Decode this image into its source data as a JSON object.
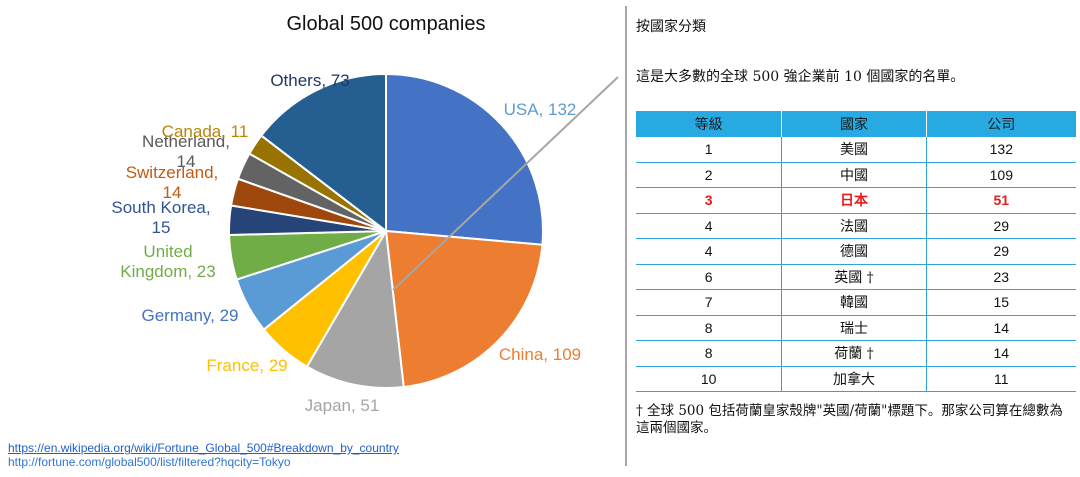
{
  "chart_data": {
    "type": "pie",
    "title": "Global 500 companies",
    "slices": [
      {
        "label": "USA, 132",
        "value": 132,
        "color": "#4472c4",
        "label_color": "#5b9bd5"
      },
      {
        "label": "China, 109",
        "value": 109,
        "color": "#ed7d31",
        "label_color": "#ed7d31"
      },
      {
        "label": "Japan, 51",
        "value": 51,
        "color": "#a5a5a5",
        "label_color": "#a5a5a5"
      },
      {
        "label": "France, 29",
        "value": 29,
        "color": "#ffc000",
        "label_color": "#ffc000"
      },
      {
        "label": "Germany, 29",
        "value": 29,
        "color": "#5b9bd5",
        "label_color": "#4472c4"
      },
      {
        "label": "United Kingdom, 23",
        "value": 23,
        "color": "#70ad47",
        "label_color": "#70ad47"
      },
      {
        "label": "South Korea, 15",
        "value": 15,
        "color": "#264478",
        "label_color": "#2f5597"
      },
      {
        "label": "Switzerland, 14",
        "value": 14,
        "color": "#9e480e",
        "label_color": "#c55a11"
      },
      {
        "label": "Netherland, 14",
        "value": 14,
        "color": "#636363",
        "label_color": "#595959"
      },
      {
        "label": "Canada, 11",
        "value": 11,
        "color": "#997300",
        "label_color": "#b8860b"
      },
      {
        "label": "Others, 73",
        "value": 73,
        "color": "#255e91",
        "label_color": "#1f3864"
      }
    ]
  },
  "links": {
    "wiki": "https://en.wikipedia.org/wiki/Fortune_Global_500#Breakdown_by_country",
    "fortune": "http://fortune.com/global500/list/filtered?hqcity=Tokyo"
  },
  "panel": {
    "heading": "按國家分類",
    "intro": "這是大多數的全球 500 強企業前 10 個國家的名單。",
    "headers": [
      "等級",
      "國家",
      "公司"
    ],
    "rows": [
      {
        "rank": "1",
        "country": "美國",
        "count": "132"
      },
      {
        "rank": "2",
        "country": "中國",
        "count": "109"
      },
      {
        "rank": "3",
        "country": "日本",
        "count": "51",
        "highlight": true
      },
      {
        "rank": "4",
        "country": "法國",
        "count": "29"
      },
      {
        "rank": "4",
        "country": "德國",
        "count": "29"
      },
      {
        "rank": "6",
        "country": "英國 †",
        "count": "23"
      },
      {
        "rank": "7",
        "country": "韓國",
        "count": "15"
      },
      {
        "rank": "8",
        "country": "瑞士",
        "count": "14"
      },
      {
        "rank": "8",
        "country": "荷蘭 †",
        "count": "14"
      },
      {
        "rank": "10",
        "country": "加拿大",
        "count": "11"
      }
    ],
    "footnote": "† 全球 500 包括荷蘭皇家殼牌\"英國/荷蘭\"標題下。那家公司算在總數為這兩個國家。",
    "accent": "#27a9e1",
    "highlight_color": "#e81c1c"
  }
}
